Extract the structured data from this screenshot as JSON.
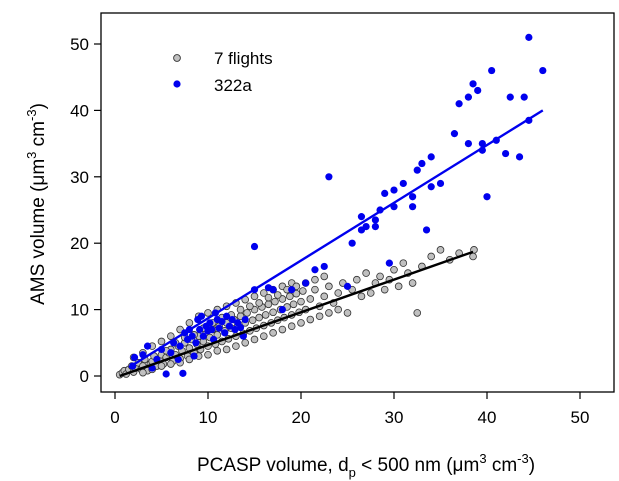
{
  "chart_data": {
    "type": "scatter",
    "xlabel": {
      "main": "PCASP volume, d",
      "sub": "p",
      "rest": " < 500 nm  (μm",
      "sup1": "3",
      "mid": " cm",
      "sup2": "-3",
      "end": ")"
    },
    "ylabel": {
      "main": "AMS volume (μm",
      "sup1": "3",
      "mid": " cm",
      "sup2": "-3",
      "end": ")"
    },
    "xlim": [
      -1,
      54
    ],
    "ylim": [
      -1.5,
      55
    ],
    "xticks": [
      0,
      10,
      20,
      30,
      40,
      50
    ],
    "yticks": [
      0,
      10,
      20,
      30,
      40,
      50
    ],
    "grid": false,
    "legend_position": "top-left",
    "colors": {
      "gray_fill": "#c0c0c0",
      "gray_edge": "#333333",
      "blue": "#0000ee",
      "black": "#000000"
    },
    "series": [
      {
        "name": "7 flights",
        "marker": "open-circle-gray",
        "fit": {
          "x": [
            0.5,
            38.5
          ],
          "y": [
            0.0,
            18.7
          ]
        },
        "points": [
          [
            0.5,
            0.2
          ],
          [
            0.8,
            0.5
          ],
          [
            1,
            0.8
          ],
          [
            1.2,
            0.3
          ],
          [
            1.5,
            1
          ],
          [
            1.8,
            1.5
          ],
          [
            2,
            0.6
          ],
          [
            2.2,
            1.2
          ],
          [
            2.5,
            2
          ],
          [
            2.8,
            1
          ],
          [
            3,
            1.5
          ],
          [
            3.2,
            2.5
          ],
          [
            3.5,
            0.8
          ],
          [
            3.8,
            1.8
          ],
          [
            4,
            2.2
          ],
          [
            4.2,
            3
          ],
          [
            4.5,
            1.5
          ],
          [
            4.8,
            2.6
          ],
          [
            5,
            3.2
          ],
          [
            5.2,
            1.8
          ],
          [
            5.5,
            2.8
          ],
          [
            5.8,
            3.5
          ],
          [
            6,
            4
          ],
          [
            6.2,
            2.2
          ],
          [
            6.5,
            3.2
          ],
          [
            6.8,
            4.5
          ],
          [
            7,
            2.6
          ],
          [
            7.2,
            3.8
          ],
          [
            7.5,
            5
          ],
          [
            7.8,
            3
          ],
          [
            8,
            4.2
          ],
          [
            8.2,
            5.5
          ],
          [
            8.5,
            3.5
          ],
          [
            8.8,
            4.8
          ],
          [
            9,
            6
          ],
          [
            9.2,
            4
          ],
          [
            9.5,
            5.2
          ],
          [
            9.8,
            6.5
          ],
          [
            10,
            4.5
          ],
          [
            10.2,
            5.8
          ],
          [
            10.5,
            7
          ],
          [
            10.8,
            4.8
          ],
          [
            11,
            6.2
          ],
          [
            11.2,
            7.5
          ],
          [
            11.5,
            5.2
          ],
          [
            11.8,
            6.8
          ],
          [
            12,
            8
          ],
          [
            12.2,
            5.6
          ],
          [
            12.5,
            7.2
          ],
          [
            12.8,
            8.5
          ],
          [
            13,
            6
          ],
          [
            13.2,
            7.6
          ],
          [
            13.5,
            9
          ],
          [
            13.8,
            6.4
          ],
          [
            14,
            8
          ],
          [
            14.2,
            9.5
          ],
          [
            14.5,
            6.8
          ],
          [
            14.8,
            8.4
          ],
          [
            15,
            10
          ],
          [
            15.2,
            7.2
          ],
          [
            15.5,
            8.8
          ],
          [
            15.8,
            10.4
          ],
          [
            16,
            7.6
          ],
          [
            16.2,
            9.2
          ],
          [
            16.5,
            10.8
          ],
          [
            16.8,
            8
          ],
          [
            17,
            9.6
          ],
          [
            17.2,
            11.2
          ],
          [
            17.5,
            8.4
          ],
          [
            17.8,
            10
          ],
          [
            18,
            11.6
          ],
          [
            18.2,
            8.8
          ],
          [
            18.5,
            10.4
          ],
          [
            18.8,
            12
          ],
          [
            19,
            9.2
          ],
          [
            19.2,
            10.8
          ],
          [
            19.5,
            12.4
          ],
          [
            19.8,
            9.6
          ],
          [
            20,
            11.2
          ],
          [
            20.2,
            12.8
          ],
          [
            20.5,
            10
          ],
          [
            21,
            11.6
          ],
          [
            21.5,
            13
          ],
          [
            22,
            10.5
          ],
          [
            22.5,
            12
          ],
          [
            23,
            13.5
          ],
          [
            23.5,
            11
          ],
          [
            24,
            12.5
          ],
          [
            24.5,
            14
          ],
          [
            25,
            9.5
          ],
          [
            25.5,
            13
          ],
          [
            26,
            14.5
          ],
          [
            26.5,
            12
          ],
          [
            27,
            15.5
          ],
          [
            27.5,
            12.5
          ],
          [
            28,
            14
          ],
          [
            28.5,
            15
          ],
          [
            29,
            13
          ],
          [
            29.5,
            14.5
          ],
          [
            30,
            16
          ],
          [
            30.5,
            13.5
          ],
          [
            31,
            17
          ],
          [
            31.5,
            15.5
          ],
          [
            32,
            14
          ],
          [
            32.5,
            9.5
          ],
          [
            33,
            16.5
          ],
          [
            34,
            18
          ],
          [
            35,
            19
          ],
          [
            36,
            17.5
          ],
          [
            37,
            18.5
          ],
          [
            38.5,
            18
          ],
          [
            38.6,
            19
          ],
          [
            2,
            2.8
          ],
          [
            3,
            3.5
          ],
          [
            4,
            4.5
          ],
          [
            5,
            5.2
          ],
          [
            6,
            6
          ],
          [
            7,
            7
          ],
          [
            8,
            8
          ],
          [
            9,
            9
          ],
          [
            10,
            9.5
          ],
          [
            11,
            10
          ],
          [
            12,
            10.5
          ],
          [
            13,
            11
          ],
          [
            14,
            11.5
          ],
          [
            15,
            12
          ],
          [
            16,
            12.5
          ],
          [
            17,
            13
          ],
          [
            18,
            13.5
          ],
          [
            19,
            14
          ],
          [
            3,
            0.5
          ],
          [
            4,
            1
          ],
          [
            5,
            1.5
          ],
          [
            6,
            1.8
          ],
          [
            7,
            2
          ],
          [
            8,
            2.5
          ],
          [
            9,
            3
          ],
          [
            10,
            3.2
          ],
          [
            11,
            3.8
          ],
          [
            12,
            4
          ],
          [
            13,
            4.5
          ],
          [
            14,
            5
          ],
          [
            15,
            5.5
          ],
          [
            16,
            6
          ],
          [
            17,
            6.5
          ],
          [
            18,
            7
          ],
          [
            19,
            7.5
          ],
          [
            20,
            8
          ],
          [
            21,
            8.5
          ],
          [
            22,
            9
          ],
          [
            23,
            9.5
          ],
          [
            24,
            10
          ],
          [
            5.5,
            3.8
          ],
          [
            6.5,
            5
          ],
          [
            7.5,
            5.8
          ],
          [
            8.5,
            6.2
          ],
          [
            9.5,
            7.2
          ],
          [
            10.5,
            8
          ],
          [
            11.5,
            8.8
          ],
          [
            12.5,
            9.2
          ],
          [
            13.5,
            10
          ],
          [
            14.5,
            10.5
          ],
          [
            15.5,
            11
          ],
          [
            16.5,
            11.8
          ],
          [
            17.5,
            12.2
          ],
          [
            18.5,
            13
          ],
          [
            19.5,
            13.5
          ],
          [
            20.5,
            14
          ],
          [
            21.5,
            14.5
          ],
          [
            22.5,
            15
          ]
        ]
      },
      {
        "name": "322a",
        "marker": "filled-circle-blue",
        "fit": {
          "x": [
            1.5,
            46.0
          ],
          "y": [
            1.3,
            40.0
          ]
        },
        "points": [
          [
            1.9,
            1.5
          ],
          [
            2.1,
            2.8
          ],
          [
            3,
            3.2
          ],
          [
            3.5,
            4.5
          ],
          [
            4,
            1.2
          ],
          [
            4.5,
            2.5
          ],
          [
            5,
            4
          ],
          [
            5.5,
            0.3
          ],
          [
            6,
            3.5
          ],
          [
            6.3,
            5
          ],
          [
            6.8,
            2.5
          ],
          [
            7,
            4.5
          ],
          [
            7.3,
            0.4
          ],
          [
            7.5,
            6.5
          ],
          [
            7.8,
            5.5
          ],
          [
            8,
            7
          ],
          [
            8.3,
            6
          ],
          [
            8.5,
            3
          ],
          [
            8.7,
            5
          ],
          [
            8.9,
            8.5
          ],
          [
            9.1,
            7
          ],
          [
            9.3,
            9
          ],
          [
            9.5,
            6
          ],
          [
            9.8,
            7.5
          ],
          [
            10,
            6.8
          ],
          [
            10.2,
            8
          ],
          [
            10.4,
            7
          ],
          [
            10.6,
            5.5
          ],
          [
            10.8,
            9.5
          ],
          [
            11,
            8.5
          ],
          [
            11.2,
            7.2
          ],
          [
            11.5,
            8.2
          ],
          [
            11.8,
            6.5
          ],
          [
            12,
            9
          ],
          [
            12.3,
            7.5
          ],
          [
            12.6,
            8.5
          ],
          [
            12.9,
            7
          ],
          [
            13.2,
            8
          ],
          [
            13.5,
            7.3
          ],
          [
            13.8,
            6
          ],
          [
            14,
            8.5
          ],
          [
            15,
            13
          ],
          [
            15,
            19.5
          ],
          [
            16.5,
            13.3
          ],
          [
            17,
            13
          ],
          [
            18,
            10
          ],
          [
            19,
            13
          ],
          [
            20.5,
            14
          ],
          [
            21.5,
            16
          ],
          [
            22.5,
            16.5
          ],
          [
            23,
            30
          ],
          [
            25,
            13.5
          ],
          [
            25.5,
            20
          ],
          [
            26.5,
            22
          ],
          [
            26.5,
            24
          ],
          [
            27,
            22.5
          ],
          [
            28,
            22.5
          ],
          [
            28,
            23.5
          ],
          [
            28.5,
            25
          ],
          [
            29,
            27.5
          ],
          [
            29.5,
            17
          ],
          [
            30,
            25.5
          ],
          [
            30,
            28
          ],
          [
            31,
            29
          ],
          [
            32,
            25.5
          ],
          [
            32,
            27
          ],
          [
            32.5,
            31
          ],
          [
            33,
            32
          ],
          [
            33.5,
            22
          ],
          [
            34,
            28.5
          ],
          [
            34,
            33
          ],
          [
            35,
            29
          ],
          [
            36.5,
            36.5
          ],
          [
            37,
            41
          ],
          [
            38,
            42
          ],
          [
            38,
            35
          ],
          [
            38.5,
            44
          ],
          [
            39,
            43
          ],
          [
            39.5,
            34
          ],
          [
            39.5,
            35
          ],
          [
            40,
            27
          ],
          [
            40.5,
            46
          ],
          [
            41,
            35.5
          ],
          [
            42,
            33.5
          ],
          [
            42.5,
            42
          ],
          [
            43.5,
            33
          ],
          [
            44,
            42
          ],
          [
            44.5,
            51
          ],
          [
            44.5,
            38.5
          ],
          [
            46,
            46
          ]
        ]
      }
    ]
  }
}
